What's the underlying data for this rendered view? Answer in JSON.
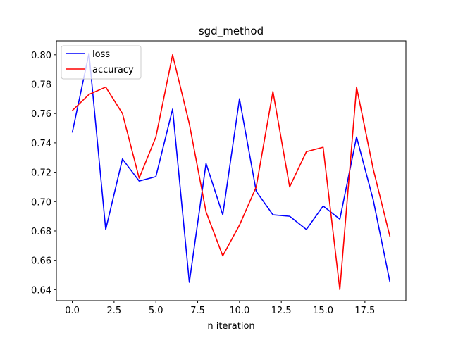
{
  "chart_data": {
    "type": "line",
    "title": "sgd_method",
    "xlabel": "n iteration",
    "ylabel": "",
    "xlim": [
      -0.95,
      19.95
    ],
    "ylim": [
      0.6325,
      0.8095
    ],
    "xticks": [
      0.0,
      2.5,
      5.0,
      7.5,
      10.0,
      12.5,
      15.0,
      17.5
    ],
    "xtick_labels": [
      "0.0",
      "2.5",
      "5.0",
      "7.5",
      "10.0",
      "12.5",
      "15.0",
      "17.5"
    ],
    "yticks": [
      0.64,
      0.66,
      0.68,
      0.7,
      0.72,
      0.74,
      0.76,
      0.78,
      0.8
    ],
    "ytick_labels": [
      "0.64",
      "0.66",
      "0.68",
      "0.70",
      "0.72",
      "0.74",
      "0.76",
      "0.78",
      "0.80"
    ],
    "grid": false,
    "legend_position": "top-left",
    "x": [
      0,
      1,
      2,
      3,
      4,
      5,
      6,
      7,
      8,
      9,
      10,
      11,
      12,
      13,
      14,
      15,
      16,
      17,
      18,
      19
    ],
    "series": [
      {
        "name": "loss",
        "color": "#0000ff",
        "values": [
          0.747,
          0.801,
          0.681,
          0.729,
          0.714,
          0.717,
          0.763,
          0.645,
          0.726,
          0.691,
          0.77,
          0.707,
          0.691,
          0.69,
          0.681,
          0.697,
          0.688,
          0.744,
          0.701,
          0.645
        ]
      },
      {
        "name": "accuracy",
        "color": "#ff0000",
        "values": [
          0.762,
          0.773,
          0.778,
          0.76,
          0.716,
          0.744,
          0.8,
          0.753,
          0.693,
          0.663,
          0.684,
          0.71,
          0.775,
          0.71,
          0.734,
          0.737,
          0.64,
          0.778,
          0.722,
          0.676
        ]
      }
    ]
  }
}
